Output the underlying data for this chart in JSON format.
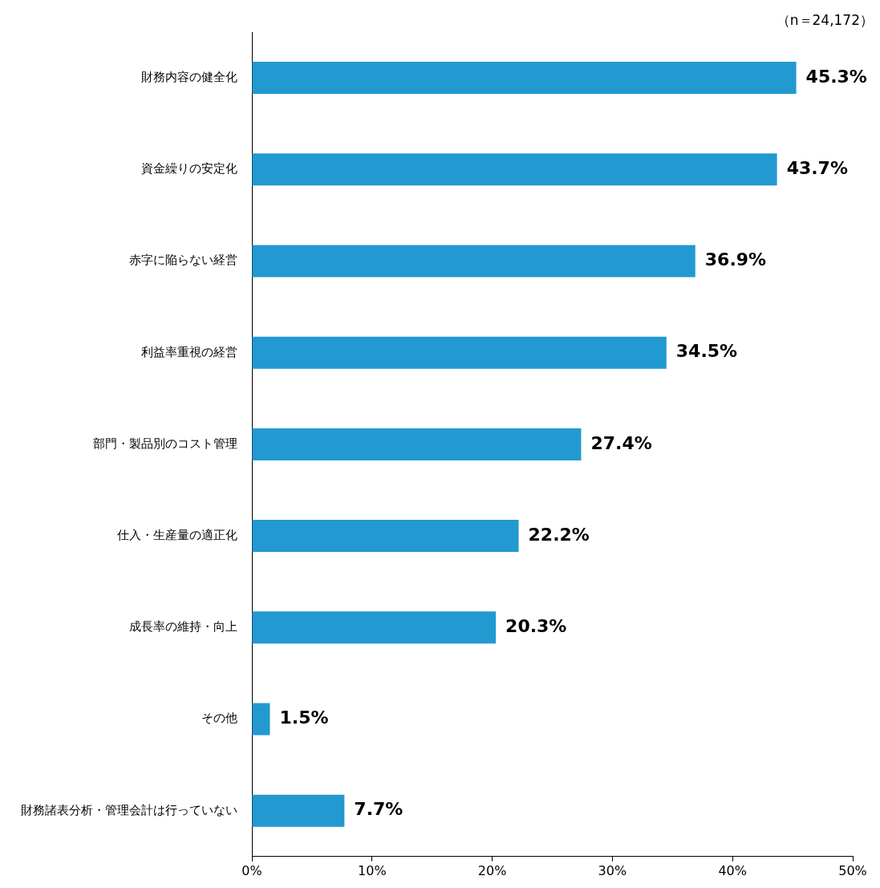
{
  "chart_data": {
    "type": "bar",
    "orientation": "horizontal",
    "categories": [
      "財務内容の健全化",
      "資金繰りの安定化",
      "赤字に陥らない経営",
      "利益率重視の経営",
      "部門・製品別のコスト管理",
      "仕入・生産量の適正化",
      "成長率の維持・向上",
      "その他",
      "財務諸表分析・管理会計は行っていない"
    ],
    "values": [
      45.3,
      43.7,
      36.9,
      34.5,
      27.4,
      22.2,
      20.3,
      1.5,
      7.7
    ],
    "value_labels": [
      "45.3%",
      "43.7%",
      "36.9%",
      "34.5%",
      "27.4%",
      "22.2%",
      "20.3%",
      "1.5%",
      "7.7%"
    ],
    "color": "#2399d1",
    "xlim": [
      0,
      50
    ],
    "xticks": [
      {
        "value": 0,
        "label": "0%"
      },
      {
        "value": 10,
        "label": "10%"
      },
      {
        "value": 20,
        "label": "20%"
      },
      {
        "value": 30,
        "label": "30%"
      },
      {
        "value": 40,
        "label": "40%"
      },
      {
        "value": 50,
        "label": "50%"
      }
    ],
    "annotations": [
      "（n＝24,172）"
    ],
    "grid": false,
    "legend": false
  }
}
